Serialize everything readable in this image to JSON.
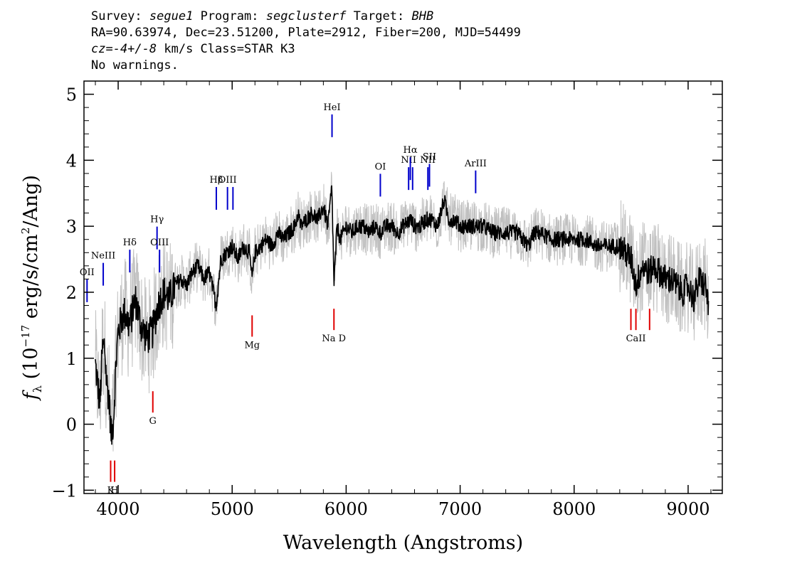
{
  "header": {
    "survey_label": "Survey:",
    "survey": "segue1",
    "program_label": "Program:",
    "program": "segclusterf",
    "target_label": "Target:",
    "target": "BHB",
    "line2": "RA=90.63974, Dec=23.51200, Plate=2912, Fiber=200, MJD=54499",
    "cz": "cz=-4+/-8",
    "line3_rest": " km/s Class=STAR K3",
    "line4": "No warnings."
  },
  "colors": {
    "spectrum": "#000000",
    "error": "#c0c0c0",
    "emission": "#0000cc",
    "absorption": "#e00000",
    "frame": "#000000"
  },
  "chart_data": {
    "type": "line",
    "xlabel": "Wavelength (Angstroms)",
    "ylabel": "f_λ (10^-17 erg/s/cm^2/Ang)",
    "ylabel_parts": {
      "f": "f",
      "lambda": "λ",
      "open": " (10",
      "exp1": "−17",
      "mid": " erg/s/cm",
      "exp2": "2",
      "close": "/Ang)"
    },
    "xlim": [
      3700,
      9300
    ],
    "ylim": [
      -1.05,
      5.2
    ],
    "xticks": [
      4000,
      5000,
      6000,
      7000,
      8000,
      9000
    ],
    "yticks": [
      -1,
      0,
      1,
      2,
      3,
      4,
      5
    ],
    "series": [
      {
        "role": "flux",
        "x": [
          3800,
          3820,
          3840,
          3860,
          3880,
          3900,
          3920,
          3940,
          3960,
          3980,
          4000,
          4050,
          4100,
          4150,
          4200,
          4250,
          4300,
          4350,
          4400,
          4450,
          4500,
          4550,
          4600,
          4650,
          4700,
          4750,
          4800,
          4860,
          4900,
          4950,
          5000,
          5050,
          5100,
          5150,
          5175,
          5200,
          5250,
          5300,
          5350,
          5400,
          5450,
          5500,
          5550,
          5580,
          5600,
          5650,
          5700,
          5750,
          5800,
          5840,
          5875,
          5893,
          5920,
          5950,
          6000,
          6050,
          6100,
          6150,
          6200,
          6250,
          6300,
          6350,
          6400,
          6450,
          6500,
          6563,
          6600,
          6650,
          6700,
          6750,
          6800,
          6860,
          6900,
          6950,
          7000,
          7100,
          7200,
          7300,
          7400,
          7500,
          7600,
          7650,
          7700,
          7800,
          7900,
          8000,
          8100,
          8200,
          8300,
          8400,
          8500,
          8542,
          8600,
          8662,
          8700,
          8750,
          8800,
          8850,
          8900,
          8950,
          9000,
          9050,
          9100,
          9150,
          9180
        ],
        "y": [
          0.9,
          0.6,
          0.3,
          1.1,
          1.2,
          0.6,
          0.4,
          -0.2,
          0.1,
          0.9,
          1.4,
          1.7,
          1.5,
          1.9,
          1.5,
          1.3,
          1.4,
          1.8,
          2.0,
          1.9,
          2.1,
          2.2,
          2.1,
          2.3,
          2.4,
          2.2,
          2.3,
          1.8,
          2.5,
          2.6,
          2.7,
          2.5,
          2.7,
          2.6,
          2.2,
          2.6,
          2.7,
          2.8,
          2.7,
          2.9,
          2.8,
          2.9,
          3.0,
          3.2,
          3.0,
          3.1,
          3.2,
          3.1,
          3.3,
          3.0,
          3.6,
          2.1,
          3.0,
          2.8,
          3.0,
          2.9,
          3.0,
          3.0,
          2.9,
          3.0,
          2.9,
          3.0,
          3.0,
          2.9,
          3.0,
          3.1,
          3.0,
          3.0,
          3.1,
          3.1,
          3.0,
          3.4,
          3.1,
          3.1,
          3.0,
          3.0,
          3.0,
          2.9,
          2.9,
          2.9,
          2.7,
          2.9,
          2.9,
          2.8,
          2.8,
          2.8,
          2.8,
          2.7,
          2.7,
          2.7,
          2.5,
          2.1,
          2.4,
          2.3,
          2.4,
          2.3,
          2.2,
          2.2,
          2.1,
          2.0,
          2.1,
          1.9,
          2.2,
          2.1,
          1.8
        ]
      }
    ],
    "emission_lines": [
      {
        "label": "OII",
        "x": 3727,
        "y": 1.85
      },
      {
        "label": "NeIII",
        "x": 3869,
        "y": 2.1
      },
      {
        "label": "Hδ",
        "x": 4102,
        "y": 2.3
      },
      {
        "label": "Hγ",
        "x": 4341,
        "y": 2.65
      },
      {
        "label": "OIII",
        "x": 4363,
        "y": 2.3
      },
      {
        "label": "Hβ",
        "x": 4861,
        "y": 3.25
      },
      {
        "label": "OIII",
        "x": 4959,
        "y": 3.25
      },
      {
        "label": "",
        "x": 5007,
        "y": 3.25
      },
      {
        "label": "HeI",
        "x": 5876,
        "y": 4.35
      },
      {
        "label": "OI",
        "x": 6300,
        "y": 3.45
      },
      {
        "label": "NII",
        "x": 6548,
        "y": 3.55
      },
      {
        "label": "Hα",
        "x": 6563,
        "y": 3.7
      },
      {
        "label": "",
        "x": 6583,
        "y": 3.55
      },
      {
        "label": "NII",
        "x": 6717,
        "y": 3.55
      },
      {
        "label": "SII",
        "x": 6731,
        "y": 3.6
      },
      {
        "label": "ArIII",
        "x": 7136,
        "y": 3.5
      }
    ],
    "absorption_lines": [
      {
        "label": "K",
        "x": 3934,
        "y": -0.55
      },
      {
        "label": "H",
        "x": 3969,
        "y": -0.55
      },
      {
        "label": "G",
        "x": 4304,
        "y": 0.5
      },
      {
        "label": "Mg",
        "x": 5175,
        "y": 1.65
      },
      {
        "label": "Na D",
        "x": 5893,
        "y": 1.75
      },
      {
        "label": "",
        "x": 8498,
        "y": 1.75
      },
      {
        "label": "CaII",
        "x": 8542,
        "y": 1.75
      },
      {
        "label": "",
        "x": 8662,
        "y": 1.75
      }
    ]
  }
}
